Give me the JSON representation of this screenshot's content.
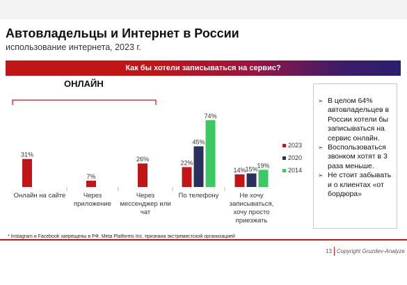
{
  "header": {
    "title": "Автовладельцы и Интернет в России",
    "subtitle": "использование интернета, 2023 г."
  },
  "banner": {
    "text": "Как бы хотели записываться на сервис?"
  },
  "online_label": "ОНЛАЙН",
  "chart_data": {
    "type": "bar",
    "categories": [
      [
        "Онлайн на сайте"
      ],
      [
        "Через",
        "приложение"
      ],
      [
        "Через",
        "мессенджер или",
        "чат"
      ],
      [
        "По телефону"
      ],
      [
        "Не хочу",
        "записываться,",
        "хочу просто",
        "приезжать"
      ]
    ],
    "series": [
      {
        "name": "2023",
        "color": "#c01618",
        "values": [
          31,
          7,
          26,
          22,
          14
        ]
      },
      {
        "name": "2020",
        "color": "#2b2f5c",
        "values": [
          null,
          null,
          null,
          45,
          15
        ]
      },
      {
        "name": "2014",
        "color": "#3ec863",
        "values": [
          null,
          null,
          null,
          74,
          19
        ]
      }
    ],
    "value_suffix": "%",
    "legend_position": "right",
    "grid": false
  },
  "sidebar": {
    "bullets": [
      "В целом 64% автовладельцев в России хотели бы записываться на сервис онлайн.",
      "Воспользоваться звонком хотят в 3 раза меньше.",
      "Не стоит забывать и о клиентах «от бордюра»"
    ]
  },
  "footer": {
    "footnote": "* Instagram и Facebook запрещены в РФ. Meta Platforms Inc. признана экстремистской организацией",
    "page_number": "13",
    "copyright": "Copyright Gruzdev-Analyze"
  },
  "colors": {
    "accent": "#c01618",
    "navy": "#2b2f5c",
    "green": "#3ec863"
  }
}
